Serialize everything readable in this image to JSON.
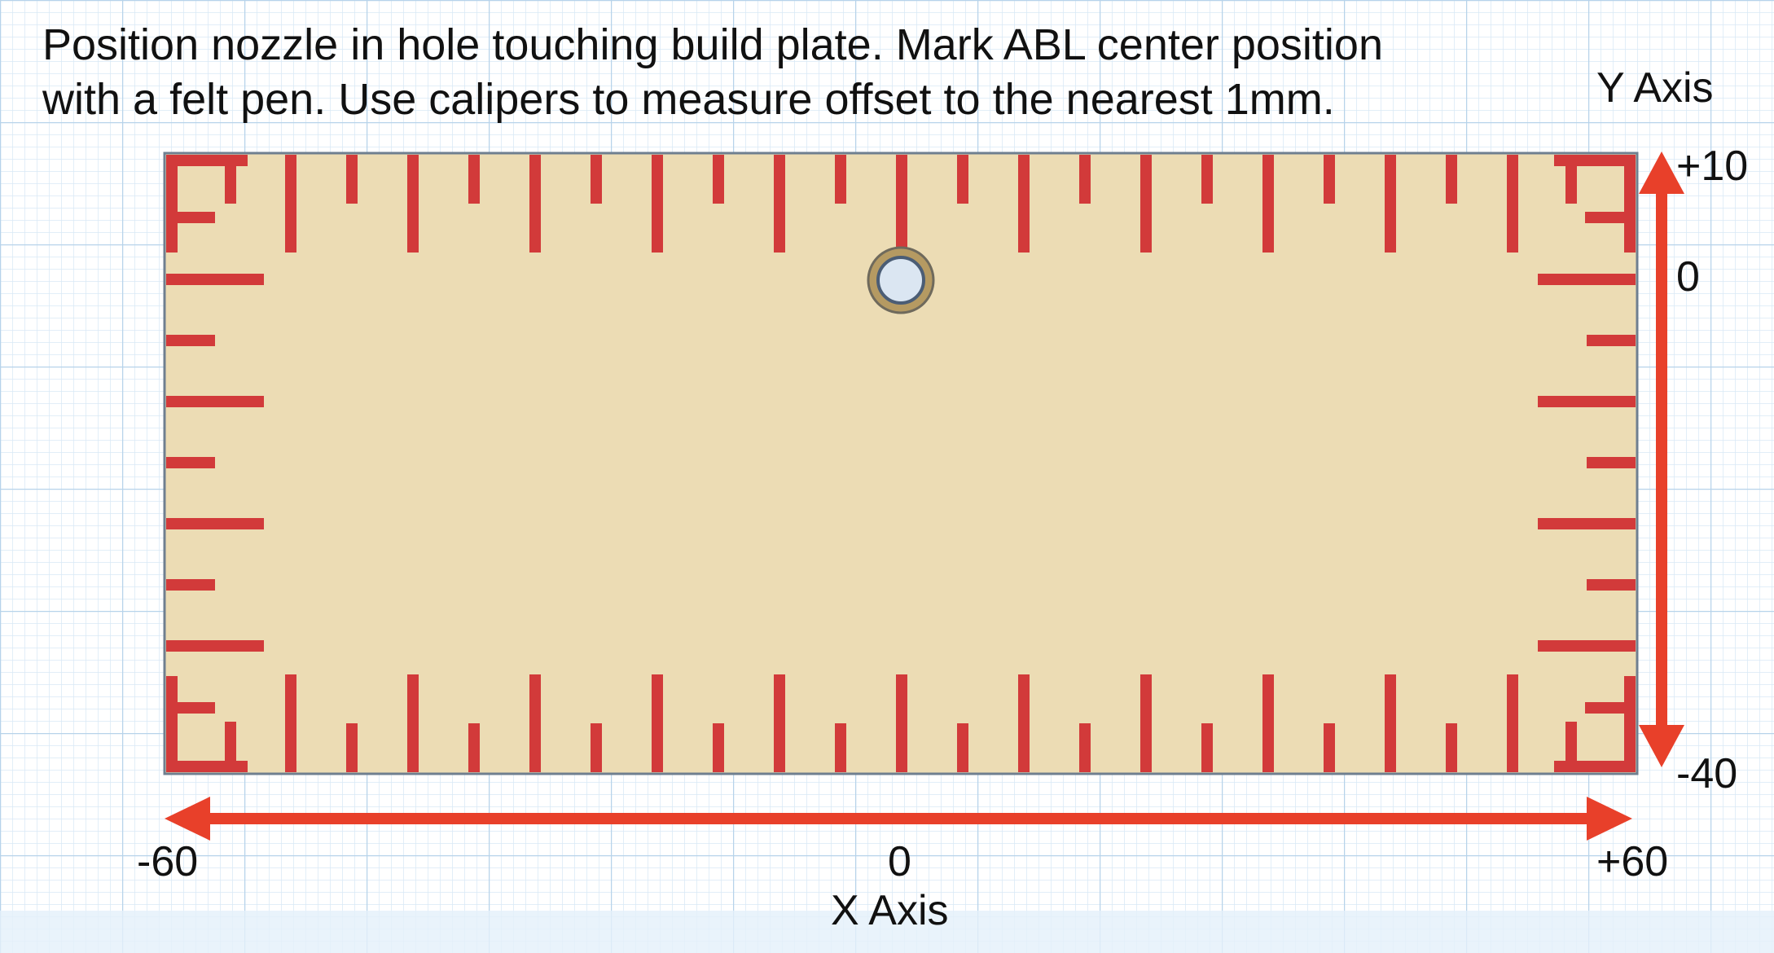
{
  "instructions": {
    "line1": "Position nozzle in hole touching build plate. Mark ABL center position",
    "line2": "with a felt pen. Use calipers to measure offset to the nearest 1mm."
  },
  "y_axis": {
    "title": "Y Axis",
    "max_label": "+10",
    "zero_label": "0",
    "min_label": "-40"
  },
  "x_axis": {
    "title": "X Axis",
    "min_label": "-60",
    "zero_label": "0",
    "max_label": "+60"
  },
  "colors": {
    "background": "#ffffff",
    "grid_minor": "#d9e9f5",
    "grid_major": "#b7d3ea",
    "plate_fill": "#ecdcb4",
    "plate_border": "#6f7f90",
    "tick_marks": "#d23a3a",
    "arrow": "#e8402a",
    "text": "#111111",
    "bottom_band": "#e4f0fa"
  }
}
